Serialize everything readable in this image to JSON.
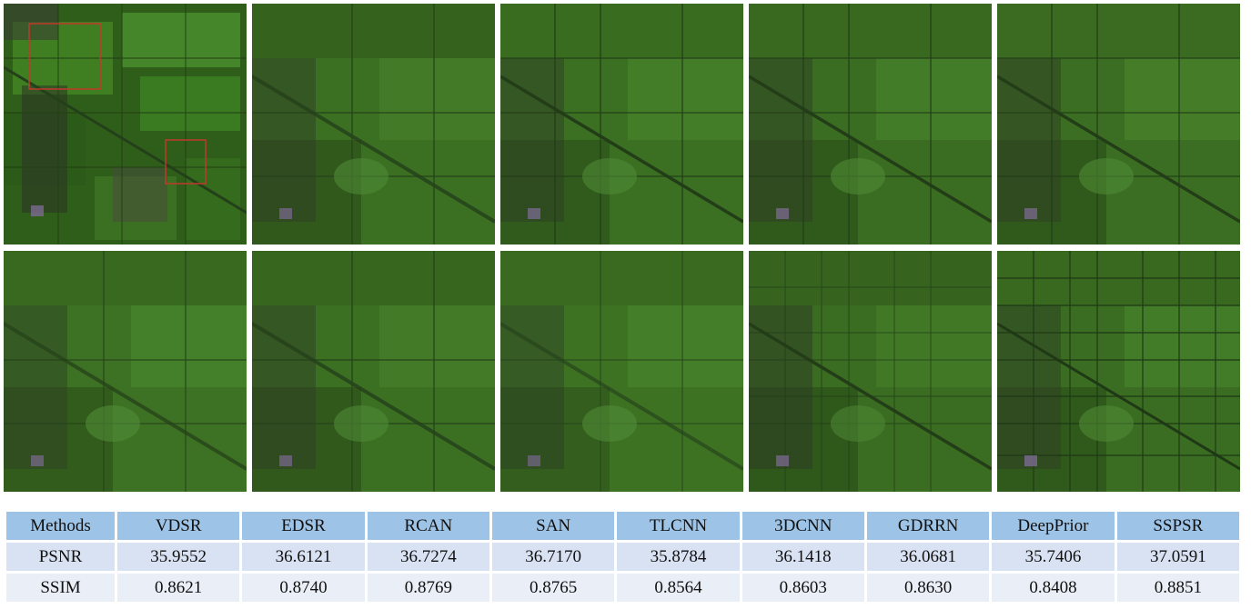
{
  "figure": {
    "panels_row1": [
      "hr-reference",
      "vdsr",
      "edsr",
      "rcan",
      "san"
    ],
    "panels_row2": [
      "tlcnn",
      "3dcnn",
      "gdrrn",
      "deepprior",
      "sspsr"
    ],
    "highlight_color": "#c0392b",
    "vegetation_color": "#3f7a1f"
  },
  "table": {
    "header": [
      "Methods",
      "VDSR",
      "EDSR",
      "RCAN",
      "SAN",
      "TLCNN",
      "3DCNN",
      "GDRRN",
      "DeepPrior",
      "SSPSR"
    ],
    "rows": [
      {
        "label": "PSNR",
        "values": [
          "35.9552",
          "36.6121",
          "36.7274",
          "36.7170",
          "35.8784",
          "36.1418",
          "36.0681",
          "35.7406",
          "37.0591"
        ]
      },
      {
        "label": "SSIM",
        "values": [
          "0.8621",
          "0.8740",
          "0.8769",
          "0.8765",
          "0.8564",
          "0.8603",
          "0.8630",
          "0.8408",
          "0.8851"
        ]
      }
    ]
  }
}
